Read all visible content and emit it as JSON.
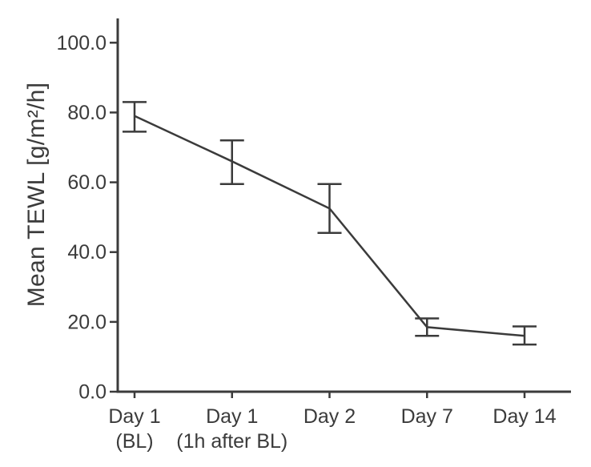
{
  "figure": {
    "background": "#ffffff"
  },
  "chart_data": {
    "type": "line",
    "title": "",
    "xlabel": "",
    "ylabel": "Mean TEWL [g/m²/h]",
    "categories": [
      "Day 1 (BL)",
      "Day 1 (1h after BL)",
      "Day 2",
      "Day 7",
      "Day 14"
    ],
    "category_label_lines": [
      [
        "Day 1",
        "(BL)"
      ],
      [
        "Day 1",
        "(1h after BL)"
      ],
      [
        "Day 2"
      ],
      [
        "Day 7"
      ],
      [
        "Day 14"
      ]
    ],
    "series": [
      {
        "name": "Mean TEWL",
        "values": [
          79,
          66,
          52.5,
          18.5,
          16
        ],
        "error_upper": [
          83,
          72,
          59.5,
          21,
          18.7
        ],
        "error_lower": [
          74.5,
          59.5,
          45.5,
          16,
          13.5
        ]
      }
    ],
    "ylim": [
      0,
      100
    ],
    "yticks": [
      0,
      20,
      40,
      60,
      80,
      100
    ],
    "ytick_labels": [
      "0.0",
      "20.0",
      "40.0",
      "60.0",
      "80.0",
      "100.0"
    ],
    "grid": false,
    "legend": false,
    "marker": "none",
    "error_bars": true,
    "line_color": "#3b3b3b",
    "axis_color": "#3b3b3b",
    "text_color": "#3b3b3b"
  }
}
